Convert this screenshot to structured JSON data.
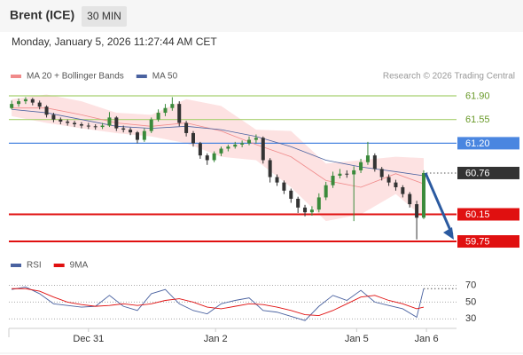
{
  "header": {
    "symbol": "Brent (ICE)",
    "timeframe": "30 MIN",
    "timestamp": "Monday, January 5, 2026 11:27:44 AM CET",
    "copyright": "Research © 2026 Trading Central"
  },
  "chart_data": [
    {
      "type": "candlestick",
      "up_color": "#3b8a3b",
      "down_color": "#333333",
      "candles": [
        [
          61.72,
          61.83,
          61.7,
          61.78
        ],
        [
          61.78,
          61.86,
          61.74,
          61.82
        ],
        [
          61.82,
          61.88,
          61.78,
          61.85
        ],
        [
          61.85,
          61.87,
          61.76,
          61.8
        ],
        [
          61.8,
          61.83,
          61.7,
          61.74
        ],
        [
          61.74,
          61.76,
          61.58,
          61.62
        ],
        [
          61.62,
          61.65,
          61.51,
          61.55
        ],
        [
          61.55,
          61.58,
          61.48,
          61.52
        ],
        [
          61.52,
          61.55,
          61.46,
          61.5
        ],
        [
          61.5,
          61.53,
          61.44,
          61.48
        ],
        [
          61.48,
          61.51,
          61.42,
          61.46
        ],
        [
          61.46,
          61.5,
          61.41,
          61.45
        ],
        [
          61.45,
          61.48,
          61.4,
          61.44
        ],
        [
          61.44,
          61.5,
          61.41,
          61.46
        ],
        [
          61.46,
          61.66,
          61.44,
          61.58
        ],
        [
          61.58,
          61.6,
          61.38,
          61.42
        ],
        [
          61.42,
          61.46,
          61.36,
          61.4
        ],
        [
          61.4,
          61.43,
          61.32,
          61.36
        ],
        [
          61.36,
          61.38,
          61.2,
          61.25
        ],
        [
          61.25,
          61.42,
          61.22,
          61.38
        ],
        [
          61.38,
          61.58,
          61.35,
          61.55
        ],
        [
          61.55,
          61.7,
          61.52,
          61.65
        ],
        [
          61.65,
          61.78,
          61.6,
          61.72
        ],
        [
          61.72,
          61.88,
          61.68,
          61.78
        ],
        [
          61.78,
          61.82,
          61.45,
          61.5
        ],
        [
          61.5,
          61.53,
          61.3,
          61.35
        ],
        [
          61.35,
          61.38,
          61.15,
          61.2
        ],
        [
          61.2,
          61.22,
          60.97,
          61.02
        ],
        [
          61.02,
          61.05,
          60.88,
          60.95
        ],
        [
          60.95,
          61.08,
          60.92,
          61.05
        ],
        [
          61.05,
          61.15,
          61.01,
          61.12
        ],
        [
          61.12,
          61.18,
          61.08,
          61.15
        ],
        [
          61.15,
          61.22,
          61.12,
          61.18
        ],
        [
          61.18,
          61.24,
          61.14,
          61.2
        ],
        [
          61.2,
          61.3,
          61.17,
          61.25
        ],
        [
          61.25,
          61.33,
          61.2,
          61.28
        ],
        [
          61.28,
          61.3,
          60.9,
          60.95
        ],
        [
          60.95,
          60.98,
          60.62,
          60.7
        ],
        [
          60.7,
          60.74,
          60.57,
          60.62
        ],
        [
          60.62,
          60.65,
          60.45,
          60.5
        ],
        [
          60.5,
          60.53,
          60.32,
          60.38
        ],
        [
          60.38,
          60.41,
          60.17,
          60.25
        ],
        [
          60.25,
          60.29,
          60.12,
          60.18
        ],
        [
          60.18,
          60.27,
          60.13,
          60.22
        ],
        [
          60.22,
          60.46,
          60.18,
          60.4
        ],
        [
          60.4,
          60.63,
          60.36,
          60.58
        ],
        [
          60.58,
          60.78,
          60.54,
          60.72
        ],
        [
          60.72,
          60.82,
          60.68,
          60.75
        ],
        [
          60.75,
          60.8,
          60.69,
          60.74
        ],
        [
          60.74,
          60.86,
          60.05,
          60.8
        ],
        [
          60.8,
          60.97,
          60.76,
          60.92
        ],
        [
          60.92,
          61.22,
          60.88,
          61.02
        ],
        [
          61.02,
          61.05,
          60.78,
          60.82
        ],
        [
          60.82,
          60.85,
          60.65,
          60.7
        ],
        [
          60.7,
          60.74,
          60.57,
          60.62
        ],
        [
          60.62,
          60.66,
          60.5,
          60.55
        ],
        [
          60.55,
          60.58,
          60.4,
          60.45
        ],
        [
          60.45,
          60.48,
          60.25,
          60.3
        ],
        [
          60.3,
          60.35,
          59.78,
          60.1
        ],
        [
          60.1,
          60.8,
          60.08,
          60.76
        ]
      ],
      "x": [
        0,
        5,
        10,
        15,
        20,
        25,
        30,
        35,
        40,
        45,
        50,
        55,
        59
      ],
      "series": [
        {
          "name": "MA 20 + Bollinger Bands",
          "color": "#f08a8a",
          "band_color": "#fde2e2",
          "values": [
            61.72,
            61.72,
            61.62,
            61.5,
            61.45,
            61.5,
            61.38,
            61.18,
            61.0,
            60.65,
            60.55,
            60.75,
            60.6
          ],
          "upper": [
            61.85,
            61.92,
            61.82,
            61.65,
            61.62,
            61.85,
            61.75,
            61.4,
            61.38,
            60.9,
            60.95,
            61.0,
            60.98
          ],
          "lower": [
            61.6,
            61.5,
            61.42,
            61.35,
            61.3,
            61.2,
            61.0,
            60.95,
            60.55,
            60.05,
            60.15,
            60.45,
            60.1
          ]
        },
        {
          "name": "MA 50",
          "color": "#4a62a0",
          "values": [
            61.7,
            61.65,
            61.55,
            61.45,
            61.42,
            61.45,
            61.4,
            61.3,
            61.15,
            60.95,
            60.85,
            60.78,
            60.72
          ]
        }
      ],
      "levels": [
        {
          "value": 61.9,
          "label": "61.90",
          "color": "#a8d070",
          "style": "solid",
          "boxed": false
        },
        {
          "value": 61.55,
          "label": "61.55",
          "color": "#a8d070",
          "style": "solid",
          "boxed": false
        },
        {
          "value": 61.2,
          "label": "61.20",
          "color": "#4a86e0",
          "style": "solid",
          "boxed": true
        },
        {
          "value": 60.76,
          "label": "60.76",
          "color": "#333333",
          "style": "dotted",
          "boxed": true
        },
        {
          "value": 60.15,
          "label": "60.15",
          "color": "#e01010",
          "style": "solid",
          "boxed": true
        },
        {
          "value": 59.75,
          "label": "59.75",
          "color": "#e01010",
          "style": "solid",
          "boxed": true
        }
      ],
      "xlim": [
        -0.4,
        63.7
      ],
      "ylim": [
        59.58,
        62.07
      ]
    },
    {
      "type": "line",
      "x": [
        0,
        2,
        4,
        6,
        8,
        10,
        12,
        14,
        16,
        18,
        20,
        22,
        24,
        26,
        28,
        30,
        32,
        34,
        36,
        38,
        40,
        42,
        44,
        46,
        48,
        50,
        52,
        54,
        56,
        58,
        59
      ],
      "series": [
        {
          "name": "RSI",
          "color": "#4a62a0",
          "values": [
            65,
            68,
            60,
            48,
            46,
            44,
            45,
            58,
            45,
            40,
            60,
            65,
            48,
            40,
            36,
            48,
            52,
            55,
            40,
            38,
            33,
            28,
            45,
            58,
            52,
            64,
            50,
            46,
            42,
            32,
            66
          ]
        },
        {
          "name": "9MA",
          "color": "#e01010",
          "values": [
            66,
            66,
            63,
            56,
            50,
            47,
            45,
            46,
            48,
            46,
            48,
            52,
            54,
            50,
            44,
            42,
            45,
            48,
            47,
            44,
            40,
            35,
            34,
            40,
            48,
            56,
            58,
            52,
            48,
            42,
            44
          ]
        }
      ],
      "xlim": [
        -0.4,
        63.7
      ],
      "ylim": [
        24,
        80
      ],
      "yticks": [
        30,
        50,
        70
      ],
      "xticks": [
        {
          "value": 11,
          "label": "Dec 31"
        },
        {
          "value": 29.2,
          "label": "Jan 2"
        },
        {
          "value": 49.4,
          "label": "Jan 5"
        },
        {
          "value": 59.4,
          "label": "Jan 6"
        }
      ]
    }
  ]
}
